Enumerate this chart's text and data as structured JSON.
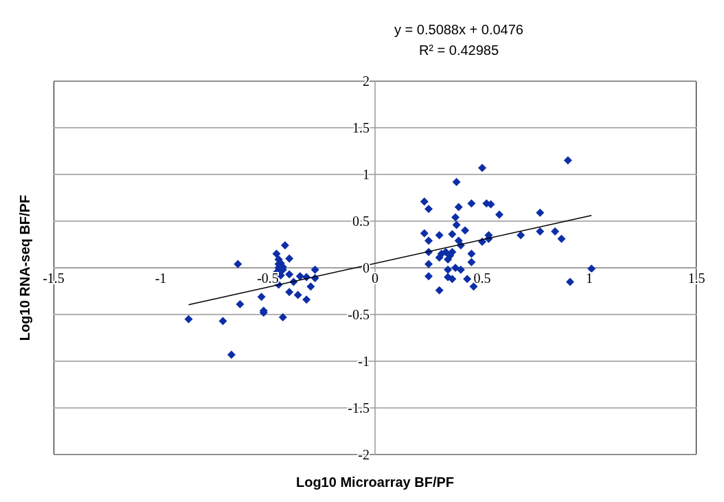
{
  "chart_data": {
    "type": "scatter",
    "xlabel": "Log10 Microarray BF/PF",
    "ylabel": "Log10 RNA-seq BF/PF",
    "annotations": [
      "y = 0.5088x + 0.0476",
      "R² = 0.42985"
    ],
    "xlim": [
      -1.5,
      1.5
    ],
    "xticks": [
      -1.5,
      -1,
      -0.5,
      0,
      0.5,
      1,
      1.5
    ],
    "ylim": [
      -2,
      2
    ],
    "yticks": [
      -2,
      -1.5,
      -1,
      -0.5,
      0,
      0.5,
      1,
      1.5,
      2
    ],
    "grid": "y",
    "legend": false,
    "marker": "diamond",
    "series": [
      {
        "color": "#0d2ea6",
        "x": [
          -0.87,
          -0.71,
          -0.67,
          -0.64,
          -0.63,
          -0.52,
          -0.53,
          -0.52,
          -0.43,
          -0.42,
          -0.46,
          -0.4,
          -0.45,
          -0.46,
          -0.44,
          -0.45,
          -0.43,
          -0.44,
          -0.43,
          -0.45,
          -0.45,
          -0.4,
          -0.38,
          -0.4,
          -0.36,
          -0.35,
          -0.32,
          -0.32,
          -0.3,
          -0.28,
          -0.28,
          -0.45,
          0.5,
          0.38,
          0.23,
          0.25,
          0.39,
          0.45,
          0.52,
          0.54,
          0.58,
          0.375,
          0.38,
          0.42,
          0.36,
          0.23,
          0.3,
          0.25,
          0.39,
          0.4,
          0.5,
          0.53,
          0.53,
          0.25,
          0.31,
          0.33,
          0.35,
          0.3,
          0.34,
          0.36,
          0.45,
          0.45,
          0.25,
          0.34,
          0.375,
          0.4,
          0.25,
          0.34,
          0.36,
          0.43,
          0.46,
          0.3,
          0.68,
          0.9,
          0.77,
          0.77,
          0.84,
          0.87,
          1.01,
          0.91
        ],
        "values": [
          -0.55,
          -0.57,
          -0.93,
          0.04,
          -0.39,
          -0.48,
          -0.31,
          -0.46,
          -0.53,
          0.24,
          0.15,
          0.1,
          0.04,
          -0.05,
          -0.08,
          0.0,
          -0.02,
          0.05,
          0.01,
          -0.06,
          -0.18,
          -0.07,
          -0.15,
          -0.26,
          -0.29,
          -0.09,
          -0.1,
          -0.34,
          -0.2,
          -0.02,
          -0.11,
          0.09,
          1.07,
          0.92,
          0.71,
          0.63,
          0.65,
          0.69,
          0.69,
          0.68,
          0.57,
          0.54,
          0.46,
          0.4,
          0.36,
          0.37,
          0.35,
          0.29,
          0.29,
          0.24,
          0.28,
          0.35,
          0.31,
          0.17,
          0.15,
          0.17,
          0.13,
          0.11,
          0.09,
          0.17,
          0.15,
          0.06,
          0.04,
          -0.02,
          0.0,
          -0.02,
          -0.09,
          -0.1,
          -0.12,
          -0.12,
          -0.2,
          -0.24,
          0.35,
          1.15,
          0.59,
          0.39,
          0.39,
          0.31,
          -0.01,
          -0.15
        ]
      },
      {
        "type": "line",
        "marker": "none",
        "color": "#000000",
        "x": [
          -0.87,
          1.01
        ],
        "values": [
          -0.395,
          0.561
        ]
      }
    ]
  }
}
